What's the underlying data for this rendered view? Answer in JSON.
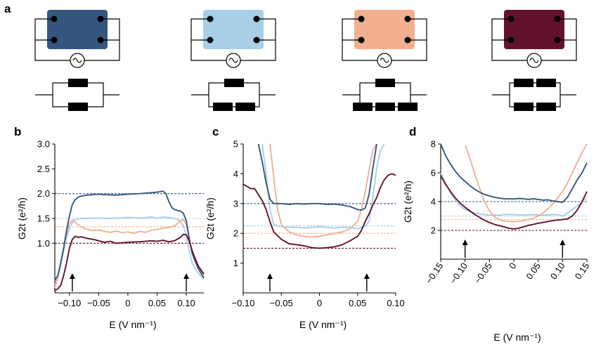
{
  "panel_labels": {
    "a": "a",
    "b": "b",
    "c": "c",
    "d": "d"
  },
  "colors": {
    "dark_blue": "#35577f",
    "light_blue": "#a8cfe6",
    "orange": "#f2b08f",
    "maroon": "#62122a"
  },
  "schematics": [
    {
      "device_color": "#35577f",
      "bars_top": 1,
      "bars_bottom": 1,
      "source_icon": "ac-source-icon"
    },
    {
      "device_color": "#a8cfe6",
      "bars_top": 1,
      "bars_bottom": 2,
      "source_icon": "ac-source-icon"
    },
    {
      "device_color": "#f2b08f",
      "bars_top": 1,
      "bars_bottom": 3,
      "source_icon": "ac-source-icon"
    },
    {
      "device_color": "#62122a",
      "bars_top": 2,
      "bars_bottom": 2,
      "source_icon": "ac-source-icon"
    }
  ],
  "arrow_icon": "up-arrow-icon",
  "chart_data": [
    {
      "panel": "b",
      "type": "line",
      "xlabel": "E (V nm⁻¹)",
      "ylabel": "G2t (e²/h)",
      "xlim": [
        -0.125,
        0.13
      ],
      "ylim": [
        0.0,
        3.0
      ],
      "xticks": [
        -0.1,
        -0.05,
        0,
        0.05,
        0.1
      ],
      "xtick_labels": [
        "−0.10",
        "−0.05",
        "0",
        "0.05",
        "0.10"
      ],
      "yticks": [
        1.0,
        1.5,
        2.0,
        2.5,
        3.0
      ],
      "ytick_labels": [
        "1.0",
        "1.5",
        "2.0",
        "2.5",
        "3.0"
      ],
      "reference_lines": [
        2.0,
        1.5,
        1.333,
        1.0
      ],
      "arrows_at_x": [
        -0.095,
        0.1
      ],
      "series": [
        {
          "name": "dark blue",
          "color": "#35577f",
          "x": [
            -0.125,
            -0.12,
            -0.115,
            -0.11,
            -0.105,
            -0.1,
            -0.095,
            -0.09,
            -0.085,
            -0.08,
            -0.07,
            -0.06,
            -0.05,
            -0.04,
            -0.02,
            0,
            0.02,
            0.04,
            0.05,
            0.06,
            0.065,
            0.07,
            0.075,
            0.08,
            0.085,
            0.09,
            0.095,
            0.1,
            0.105,
            0.11,
            0.12,
            0.13
          ],
          "y": [
            0.25,
            0.35,
            0.6,
            0.9,
            1.25,
            1.55,
            1.78,
            1.88,
            1.93,
            1.95,
            1.97,
            1.98,
            1.99,
            1.98,
            1.97,
            1.99,
            2.0,
            2.02,
            2.03,
            2.05,
            2.0,
            1.85,
            1.72,
            1.68,
            1.66,
            1.65,
            1.6,
            1.45,
            1.1,
            0.8,
            0.5,
            0.3
          ]
        },
        {
          "name": "light blue",
          "color": "#a8cfe6",
          "x": [
            -0.125,
            -0.12,
            -0.115,
            -0.11,
            -0.105,
            -0.1,
            -0.095,
            -0.09,
            -0.08,
            -0.07,
            -0.05,
            -0.03,
            0,
            0.02,
            0.04,
            0.05,
            0.06,
            0.07,
            0.08,
            0.085,
            0.09,
            0.095,
            0.1,
            0.105,
            0.11,
            0.12,
            0.13
          ],
          "y": [
            0.15,
            0.3,
            0.55,
            0.85,
            1.1,
            1.3,
            1.42,
            1.48,
            1.5,
            1.5,
            1.51,
            1.5,
            1.52,
            1.51,
            1.53,
            1.5,
            1.53,
            1.52,
            1.5,
            1.48,
            1.43,
            1.35,
            1.15,
            0.85,
            0.6,
            0.4,
            0.28
          ]
        },
        {
          "name": "orange",
          "color": "#f2b08f",
          "x": [
            -0.125,
            -0.12,
            -0.115,
            -0.11,
            -0.105,
            -0.1,
            -0.095,
            -0.09,
            -0.08,
            -0.07,
            -0.06,
            -0.05,
            -0.04,
            -0.03,
            -0.02,
            -0.01,
            0,
            0.01,
            0.02,
            0.03,
            0.04,
            0.05,
            0.06,
            0.07,
            0.08,
            0.09,
            0.095,
            0.1,
            0.105,
            0.11,
            0.12,
            0.13
          ],
          "y": [
            0.1,
            0.3,
            0.6,
            0.9,
            1.2,
            1.4,
            1.47,
            1.42,
            1.33,
            1.28,
            1.26,
            1.27,
            1.24,
            1.22,
            1.25,
            1.21,
            1.23,
            1.2,
            1.24,
            1.22,
            1.26,
            1.28,
            1.3,
            1.32,
            1.35,
            1.45,
            1.48,
            1.38,
            1.1,
            0.8,
            0.5,
            0.35
          ]
        },
        {
          "name": "maroon",
          "color": "#62122a",
          "x": [
            -0.125,
            -0.12,
            -0.115,
            -0.11,
            -0.105,
            -0.1,
            -0.095,
            -0.09,
            -0.085,
            -0.08,
            -0.07,
            -0.06,
            -0.05,
            -0.04,
            -0.03,
            -0.02,
            0,
            0.02,
            0.04,
            0.05,
            0.06,
            0.07,
            0.08,
            0.09,
            0.095,
            0.1,
            0.105,
            0.11,
            0.115,
            0.12,
            0.13
          ],
          "y": [
            0.05,
            0.08,
            0.15,
            0.35,
            0.6,
            0.9,
            1.08,
            1.14,
            1.12,
            1.13,
            1.1,
            1.08,
            1.05,
            1.02,
            1.04,
            1.0,
            1.02,
            1.03,
            1.05,
            1.04,
            1.06,
            1.03,
            1.05,
            1.12,
            1.18,
            1.17,
            1.05,
            0.85,
            0.7,
            0.55,
            0.38
          ]
        }
      ]
    },
    {
      "panel": "c",
      "type": "line",
      "xlabel": "E (V nm⁻¹)",
      "ylabel": "G2t (e²/h)",
      "xlim": [
        -0.1,
        0.1
      ],
      "ylim": [
        0.0,
        5.0
      ],
      "xticks": [
        -0.1,
        -0.05,
        0,
        0.05,
        0.1
      ],
      "xtick_labels": [
        "−0.10",
        "−0.05",
        "0",
        "0.05",
        "0.10"
      ],
      "yticks": [
        1,
        2,
        3,
        4,
        5
      ],
      "ytick_labels": [
        "1",
        "2",
        "3",
        "4",
        "5"
      ],
      "reference_lines": [
        3.0,
        2.25,
        2.0,
        1.5
      ],
      "arrows_at_x": [
        -0.065,
        0.062
      ],
      "series": [
        {
          "name": "dark blue",
          "color": "#35577f",
          "x": [
            -0.08,
            -0.075,
            -0.07,
            -0.065,
            -0.06,
            -0.05,
            -0.04,
            -0.03,
            -0.02,
            -0.01,
            0,
            0.01,
            0.02,
            0.03,
            0.04,
            0.05,
            0.055,
            0.06,
            0.065,
            0.07,
            0.075
          ],
          "y": [
            5.0,
            4.4,
            3.7,
            3.15,
            3.0,
            3.0,
            2.97,
            3.0,
            2.98,
            3.0,
            3.0,
            2.97,
            2.98,
            2.95,
            2.9,
            2.8,
            2.78,
            2.85,
            3.3,
            4.2,
            5.0
          ]
        },
        {
          "name": "light blue",
          "color": "#a8cfe6",
          "x": [
            -0.075,
            -0.07,
            -0.065,
            -0.06,
            -0.05,
            -0.04,
            -0.03,
            -0.02,
            -0.01,
            0,
            0.01,
            0.02,
            0.03,
            0.04,
            0.05,
            0.06,
            0.065,
            0.07,
            0.075,
            0.08,
            0.085
          ],
          "y": [
            5.0,
            4.0,
            2.8,
            2.3,
            2.22,
            2.2,
            2.2,
            2.18,
            2.2,
            2.22,
            2.2,
            2.18,
            2.2,
            2.2,
            2.15,
            2.25,
            2.4,
            3.2,
            4.2,
            4.8,
            5.0
          ]
        },
        {
          "name": "orange",
          "color": "#f2b08f",
          "x": [
            -0.065,
            -0.06,
            -0.055,
            -0.05,
            -0.04,
            -0.03,
            -0.02,
            -0.01,
            0,
            0.01,
            0.02,
            0.03,
            0.04,
            0.05,
            0.055,
            0.06,
            0.065,
            0.07,
            0.075
          ],
          "y": [
            5.0,
            3.9,
            2.8,
            2.3,
            2.05,
            1.95,
            1.9,
            1.88,
            1.9,
            1.95,
            2.0,
            2.05,
            2.15,
            2.4,
            2.8,
            3.4,
            4.1,
            4.8,
            5.0
          ]
        },
        {
          "name": "maroon",
          "color": "#62122a",
          "x": [
            -0.1,
            -0.09,
            -0.085,
            -0.08,
            -0.075,
            -0.07,
            -0.065,
            -0.06,
            -0.05,
            -0.04,
            -0.03,
            -0.02,
            -0.01,
            0,
            0.01,
            0.02,
            0.03,
            0.04,
            0.05,
            0.055,
            0.06,
            0.065,
            0.07,
            0.075,
            0.08,
            0.085,
            0.09,
            0.095,
            0.1
          ],
          "y": [
            3.65,
            3.5,
            3.5,
            3.3,
            3.1,
            2.8,
            2.4,
            2.05,
            1.8,
            1.65,
            1.62,
            1.58,
            1.52,
            1.5,
            1.52,
            1.55,
            1.62,
            1.75,
            1.9,
            2.1,
            2.4,
            2.65,
            2.95,
            3.2,
            3.55,
            3.8,
            3.95,
            4.0,
            3.95
          ]
        }
      ]
    },
    {
      "panel": "d",
      "type": "line",
      "xlabel": "E (V nm⁻¹)",
      "ylabel": "G2t (e²/h)",
      "xlim": [
        -0.15,
        0.15
      ],
      "ylim": [
        0.0,
        8.0
      ],
      "xticks": [
        -0.15,
        -0.1,
        -0.05,
        0,
        0.05,
        0.1,
        0.15
      ],
      "xtick_labels": [
        "−0.15",
        "−0.10",
        "−0.05",
        "0",
        "0.05",
        "0.10",
        "0.15"
      ],
      "yticks": [
        2,
        4,
        6,
        8
      ],
      "ytick_labels": [
        "2",
        "4",
        "6",
        "8"
      ],
      "reference_lines": [
        4.0,
        3.0,
        2.75,
        2.0
      ],
      "arrows_at_x": [
        -0.1,
        0.1
      ],
      "series": [
        {
          "name": "dark blue",
          "color": "#35577f",
          "x": [
            -0.15,
            -0.14,
            -0.13,
            -0.12,
            -0.11,
            -0.1,
            -0.09,
            -0.08,
            -0.07,
            -0.06,
            -0.05,
            -0.04,
            -0.03,
            -0.02,
            -0.01,
            0,
            0.01,
            0.02,
            0.03,
            0.04,
            0.05,
            0.06,
            0.07,
            0.08,
            0.09,
            0.1,
            0.11,
            0.12,
            0.13,
            0.14,
            0.15
          ],
          "y": [
            8.0,
            7.2,
            6.6,
            6.1,
            5.7,
            5.4,
            5.1,
            4.85,
            4.65,
            4.5,
            4.4,
            4.3,
            4.25,
            4.2,
            4.2,
            4.18,
            4.22,
            4.2,
            4.15,
            4.2,
            4.15,
            4.1,
            4.12,
            4.05,
            4.0,
            3.95,
            4.3,
            4.9,
            5.5,
            6.0,
            6.7
          ]
        },
        {
          "name": "light blue",
          "color": "#a8cfe6",
          "x": [
            -0.15,
            -0.14,
            -0.13,
            -0.12,
            -0.11,
            -0.1,
            -0.09,
            -0.08,
            -0.07,
            -0.06,
            -0.05,
            -0.04,
            -0.03,
            -0.02,
            0,
            0.02,
            0.04,
            0.06,
            0.08,
            0.09,
            0.1,
            0.11,
            0.12,
            0.13,
            0.14,
            0.15
          ],
          "y": [
            6.0,
            5.3,
            4.6,
            4.1,
            3.7,
            3.45,
            3.3,
            3.2,
            3.15,
            3.1,
            3.05,
            3.08,
            3.05,
            3.1,
            3.1,
            3.08,
            3.1,
            3.05,
            3.1,
            3.1,
            3.0,
            3.2,
            3.45,
            3.7,
            3.95,
            4.3
          ]
        },
        {
          "name": "orange",
          "color": "#f2b08f",
          "x": [
            -0.1,
            -0.09,
            -0.08,
            -0.07,
            -0.06,
            -0.05,
            -0.04,
            -0.03,
            -0.02,
            -0.01,
            0,
            0.01,
            0.02,
            0.03,
            0.04,
            0.05,
            0.06,
            0.07,
            0.08,
            0.09,
            0.1,
            0.11,
            0.12,
            0.13,
            0.14,
            0.15
          ],
          "y": [
            7.9,
            7.0,
            5.9,
            4.9,
            4.0,
            3.35,
            2.95,
            2.75,
            2.65,
            2.62,
            2.6,
            2.62,
            2.68,
            2.75,
            2.85,
            3.0,
            3.2,
            3.5,
            3.85,
            4.25,
            4.7,
            5.3,
            6.0,
            6.7,
            7.4,
            8.0
          ]
        },
        {
          "name": "maroon",
          "color": "#62122a",
          "x": [
            -0.15,
            -0.14,
            -0.13,
            -0.12,
            -0.11,
            -0.1,
            -0.09,
            -0.08,
            -0.07,
            -0.06,
            -0.05,
            -0.04,
            -0.03,
            -0.02,
            -0.01,
            0,
            0.01,
            0.02,
            0.03,
            0.04,
            0.05,
            0.06,
            0.07,
            0.08,
            0.09,
            0.1,
            0.11,
            0.12,
            0.13,
            0.14,
            0.15
          ],
          "y": [
            5.8,
            5.2,
            4.7,
            4.25,
            3.9,
            3.6,
            3.35,
            3.1,
            2.9,
            2.7,
            2.55,
            2.42,
            2.33,
            2.25,
            2.15,
            2.1,
            2.15,
            2.25,
            2.35,
            2.42,
            2.5,
            2.55,
            2.62,
            2.68,
            2.72,
            2.75,
            2.8,
            3.0,
            3.4,
            4.0,
            4.7
          ]
        }
      ]
    }
  ]
}
